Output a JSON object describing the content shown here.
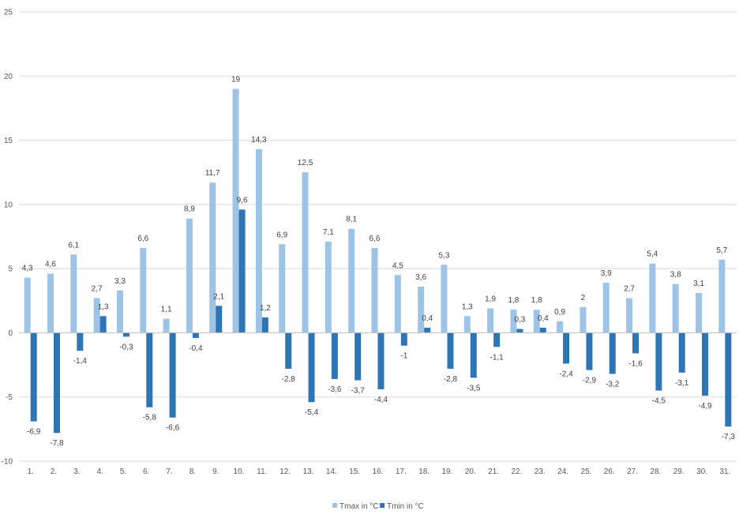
{
  "chart_data": {
    "type": "bar",
    "title": "",
    "xlabel": "",
    "ylabel": "",
    "ylim": [
      -10,
      25
    ],
    "yticks": [
      25,
      20,
      15,
      10,
      5,
      0,
      -5,
      -10
    ],
    "grid": true,
    "legend_position": "bottom",
    "categories": [
      "1.",
      "2.",
      "3.",
      "4.",
      "5.",
      "6.",
      "7.",
      "8.",
      "9.",
      "10.",
      "11.",
      "12.",
      "13.",
      "14.",
      "15.",
      "16.",
      "17.",
      "18.",
      "19.",
      "20.",
      "21.",
      "22.",
      "23.",
      "24.",
      "25.",
      "26.",
      "27.",
      "28.",
      "29.",
      "30.",
      "31."
    ],
    "series": [
      {
        "name": "Tmax in °C",
        "color": "#9dc3e6",
        "values": [
          4.3,
          4.6,
          6.1,
          2.7,
          3.3,
          6.6,
          1.1,
          8.9,
          11.7,
          19,
          14.3,
          6.9,
          12.5,
          7.1,
          8.1,
          6.6,
          4.5,
          3.6,
          5.3,
          1.3,
          1.9,
          1.8,
          1.8,
          0.9,
          2,
          3.9,
          2.7,
          5.4,
          3.8,
          3.1,
          5.7
        ],
        "labels": [
          "4,3",
          "4,6",
          "6,1",
          "2,7",
          "3,3",
          "6,6",
          "1,1",
          "8,9",
          "11,7",
          "19",
          "14,3",
          "6,9",
          "12,5",
          "7,1",
          "8,1",
          "6,6",
          "4,5",
          "3,6",
          "5,3",
          "1,3",
          "1,9",
          "1,8",
          "1,8",
          "0,9",
          "2",
          "3,9",
          "2,7",
          "5,4",
          "3,8",
          "3,1",
          "5,7"
        ]
      },
      {
        "name": "Tmin in °C",
        "color": "#2e75b6",
        "values": [
          -6.9,
          -7.8,
          -1.4,
          1.3,
          -0.3,
          -5.8,
          -6.6,
          -0.4,
          2.1,
          9.6,
          1.2,
          -2.8,
          -5.4,
          -3.6,
          -3.7,
          -4.4,
          -1,
          0.4,
          -2.8,
          -3.5,
          -1.1,
          0.3,
          0.4,
          -2.4,
          -2.9,
          -3.2,
          -1.6,
          -4.5,
          -3.1,
          -4.9,
          -7.3
        ],
        "labels": [
          "-6,9",
          "-7,8",
          "-1,4",
          "1,3",
          "-0,3",
          "-5,8",
          "-6,6",
          "-0,4",
          "2,1",
          "9,6",
          "1,2",
          "-2,8",
          "-5,4",
          "-3,6",
          "-3,7",
          "-4,4",
          "-1",
          "0,4",
          "-2,8",
          "-3,5",
          "-1,1",
          "0,3",
          "0,4",
          "-2,4",
          "-2,9",
          "-3,2",
          "-1,6",
          "-4,5",
          "-3,1",
          "-4,9",
          "-7,3"
        ]
      }
    ]
  }
}
